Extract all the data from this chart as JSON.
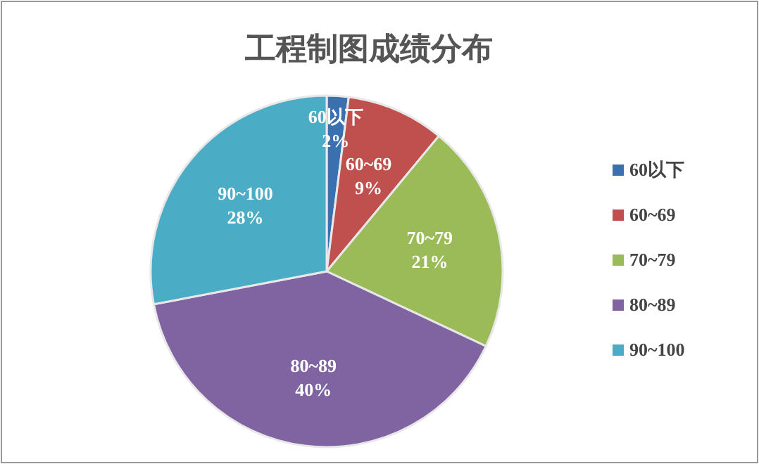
{
  "chart_data": {
    "type": "pie",
    "title": "工程制图成绩分布",
    "categories": [
      "60以下",
      "60~69",
      "70~79",
      "80~89",
      "90~100"
    ],
    "values": [
      2,
      9,
      21,
      40,
      28
    ],
    "colors": [
      "#3a6fb0",
      "#c0504d",
      "#9bbb59",
      "#8064a2",
      "#4bacc6"
    ],
    "value_labels": [
      "2%",
      "9%",
      "21%",
      "40%",
      "28%"
    ],
    "legend": "right"
  }
}
